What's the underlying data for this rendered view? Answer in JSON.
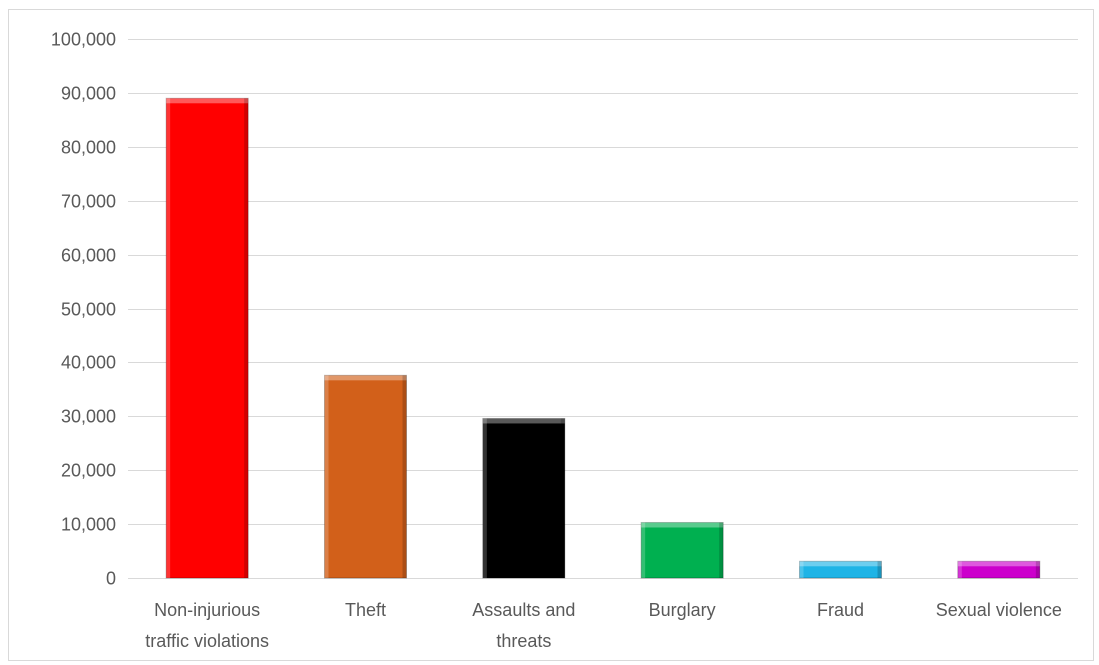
{
  "chart_data": {
    "type": "bar",
    "categories": [
      [
        "Non-injurious",
        "traffic violations"
      ],
      [
        "Theft"
      ],
      [
        "Assaults and",
        "threats"
      ],
      [
        "Burglary"
      ],
      [
        "Fraud"
      ],
      [
        "Sexual violence"
      ]
    ],
    "values": [
      89000,
      37600,
      29600,
      10300,
      3100,
      3100
    ],
    "colors": [
      "#ff0000",
      "#d2601a",
      "#000000",
      "#00b050",
      "#1fb4e6",
      "#cc00cc"
    ],
    "ylim": [
      0,
      100000
    ],
    "yticks": [
      0,
      10000,
      20000,
      30000,
      40000,
      50000,
      60000,
      70000,
      80000,
      90000,
      100000
    ],
    "ytick_labels": [
      "0",
      "10,000",
      "20,000",
      "30,000",
      "40,000",
      "50,000",
      "60,000",
      "70,000",
      "80,000",
      "90,000",
      "100,000"
    ],
    "grid": true,
    "gridline_color": "#d9d9d9"
  }
}
